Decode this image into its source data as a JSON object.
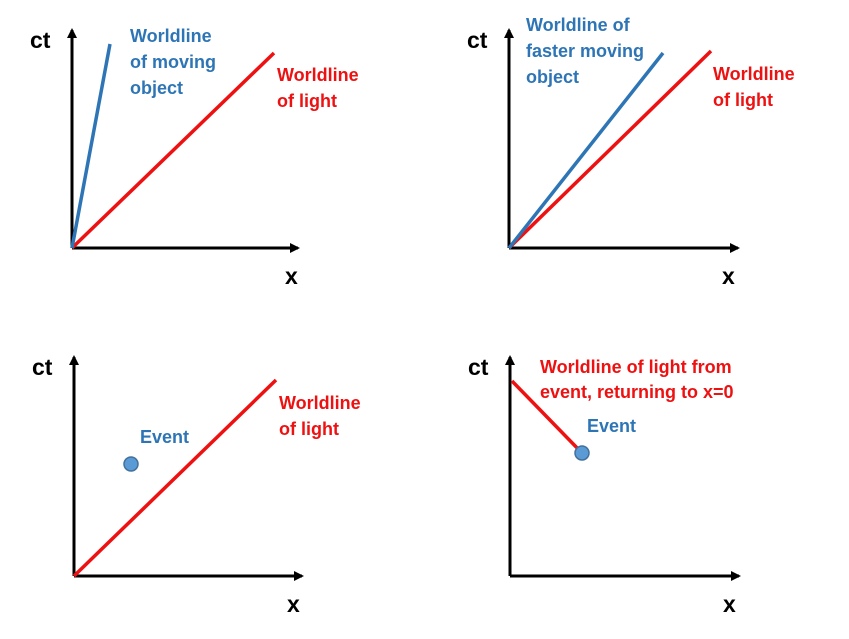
{
  "colors": {
    "axis": "#000000",
    "light": "#ee1111",
    "object": "#2e75b6",
    "event_fill": "#5b9bd5",
    "event_stroke": "#41719c"
  },
  "panels": [
    {
      "y_axis_label": "ct",
      "x_axis_label": "x",
      "object_label": [
        "Worldline",
        "of moving",
        "object"
      ],
      "light_label": [
        "Worldline",
        "of light"
      ]
    },
    {
      "y_axis_label": "ct",
      "x_axis_label": "x",
      "object_label": [
        "Worldline of",
        "faster moving",
        "object"
      ],
      "light_label": [
        "Worldline",
        "of light"
      ]
    },
    {
      "y_axis_label": "ct",
      "x_axis_label": "x",
      "event_label": "Event",
      "light_label": [
        "Worldline",
        "of light"
      ]
    },
    {
      "y_axis_label": "ct",
      "x_axis_label": "x",
      "event_label": "Event",
      "return_label": [
        "Worldline of light from",
        "event, returning to x=0"
      ]
    }
  ]
}
